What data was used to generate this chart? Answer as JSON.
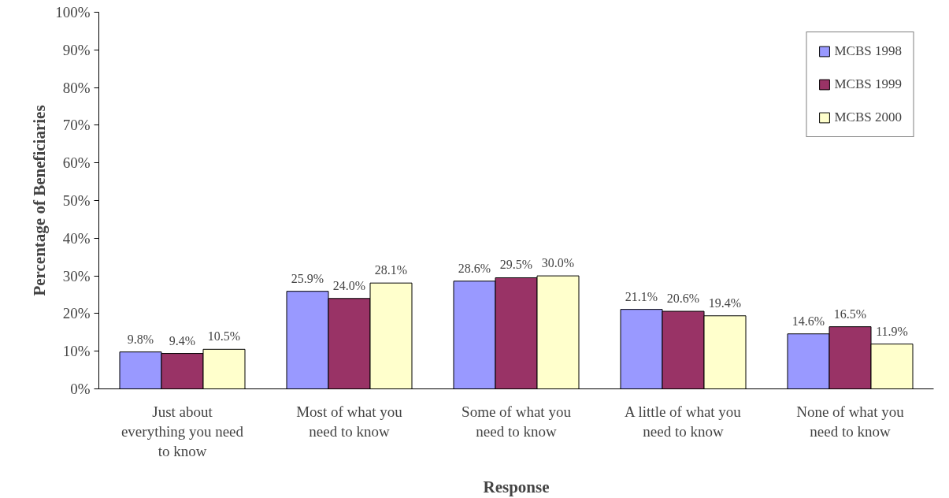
{
  "chart_data": {
    "type": "bar",
    "xlabel": "Response",
    "ylabel": "Percentage of Beneficiaries",
    "categories": [
      "Just about everything you need to know",
      "Most of what you need to know",
      "Some of what you need to know",
      "A little of what you need to know",
      "None of what you need to know"
    ],
    "series": [
      {
        "name": "MCBS 1998",
        "color": "#9999ff",
        "values": [
          9.8,
          25.9,
          28.6,
          21.1,
          14.6
        ],
        "value_labels": [
          "9.8%",
          "25.9%",
          "28.6%",
          "21.1%",
          "14.6%"
        ]
      },
      {
        "name": "MCBS 1999",
        "color": "#993366",
        "values": [
          9.4,
          24.0,
          29.5,
          20.6,
          16.5
        ],
        "value_labels": [
          "9.4%",
          "24.0%",
          "29.5%",
          "20.6%",
          "16.5%"
        ]
      },
      {
        "name": "MCBS 2000",
        "color": "#ffffcc",
        "values": [
          10.5,
          28.1,
          30.0,
          19.4,
          11.9
        ],
        "value_labels": [
          "10.5%",
          "28.1%",
          "30.0%",
          "19.4%",
          "11.9%"
        ]
      }
    ],
    "ylim": [
      0,
      100
    ],
    "yticks": [
      {
        "value": 0,
        "label": "0%"
      },
      {
        "value": 10,
        "label": "10%"
      },
      {
        "value": 20,
        "label": "20%"
      },
      {
        "value": 30,
        "label": "30%"
      },
      {
        "value": 40,
        "label": "40%"
      },
      {
        "value": 50,
        "label": "50%"
      },
      {
        "value": 60,
        "label": "60%"
      },
      {
        "value": 70,
        "label": "70%"
      },
      {
        "value": 80,
        "label": "80%"
      },
      {
        "value": 90,
        "label": "90%"
      },
      {
        "value": 100,
        "label": "100%"
      }
    ],
    "grid": false,
    "legend": "top right"
  }
}
